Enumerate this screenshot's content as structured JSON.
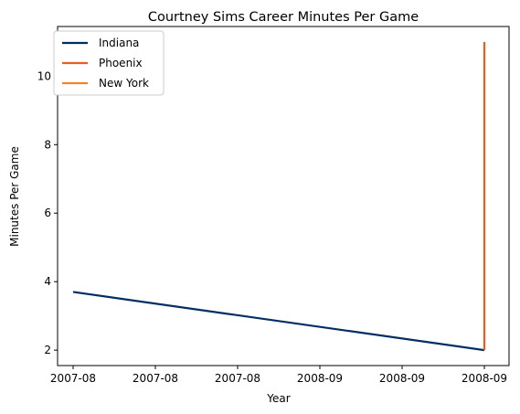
{
  "chart_data": {
    "type": "line",
    "title": "Courtney Sims Career Minutes Per Game",
    "xlabel": "Year",
    "ylabel": "Minutes Per Game",
    "x_ticks": [
      "2007-08",
      "2007-08",
      "2007-08",
      "2008-09",
      "2008-09",
      "2008-09"
    ],
    "y_ticks": [
      "2",
      "4",
      "6",
      "8",
      "10"
    ],
    "xlim": [
      0,
      1
    ],
    "ylim": [
      1.55,
      11.45
    ],
    "grid": false,
    "legend_position": "top-left",
    "series": [
      {
        "name": "Indiana",
        "color": "#002d62",
        "x": [
          0,
          1
        ],
        "y": [
          3.7,
          2.0
        ]
      },
      {
        "name": "Phoenix",
        "color": "#e56020",
        "x": [
          1,
          1
        ],
        "y": [
          2.0,
          11.0
        ]
      },
      {
        "name": "New York",
        "color": "#f58426",
        "x": [],
        "y": []
      }
    ]
  }
}
